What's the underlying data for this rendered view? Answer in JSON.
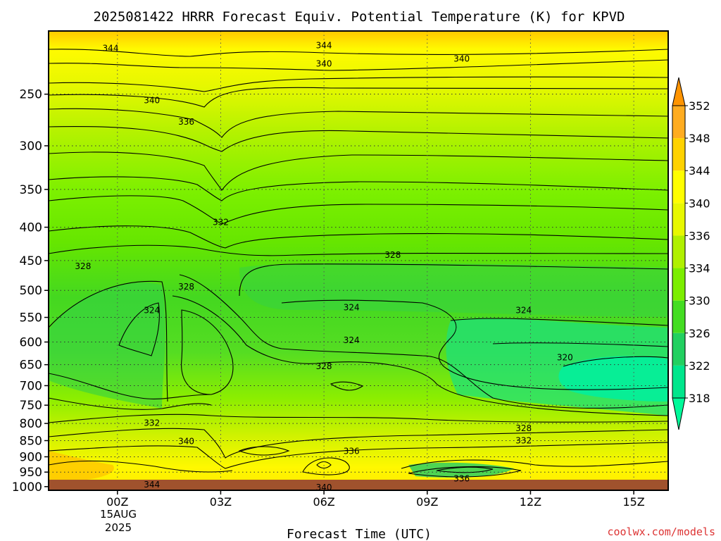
{
  "chart_data": {
    "type": "heatmap",
    "title": "2025081422 HRRR Forecast Equiv. Potential Temperature (K) for KPVD",
    "xlabel": "Forecast Time (UTC)",
    "ylabel": "",
    "credit": "coolwx.com/models",
    "x_ticks": [
      "00Z",
      "03Z",
      "06Z",
      "09Z",
      "12Z",
      "15Z"
    ],
    "x_tick_hours": [
      0,
      3,
      6,
      9,
      12,
      15
    ],
    "x_range_hours": [
      -2,
      16
    ],
    "x_date_label": [
      "15AUG",
      "2025"
    ],
    "y_ticks": [
      250,
      300,
      350,
      400,
      450,
      500,
      550,
      600,
      650,
      700,
      750,
      800,
      850,
      900,
      950,
      1000
    ],
    "y_range_hpa": [
      200,
      1013
    ],
    "y_scale": "log-pressure (reversed)",
    "grid": true,
    "colorbar": {
      "units": "K",
      "levels": [
        318,
        322,
        326,
        330,
        334,
        336,
        340,
        344,
        348,
        352
      ],
      "colors": [
        "#00fa9a",
        "#00e68c",
        "#22d060",
        "#44dd22",
        "#7cee00",
        "#b0f000",
        "#e8f800",
        "#fffe00",
        "#ffd200",
        "#ffac20",
        "#ff9400"
      ],
      "extend": "both"
    },
    "contour_labels": [
      {
        "text": "344",
        "hour": -0.2,
        "hpa": 212
      },
      {
        "text": "344",
        "hour": 6.0,
        "hpa": 210
      },
      {
        "text": "340",
        "hour": 6.0,
        "hpa": 224
      },
      {
        "text": "340",
        "hour": 10.0,
        "hpa": 220
      },
      {
        "text": "340",
        "hour": 1.0,
        "hpa": 255
      },
      {
        "text": "336",
        "hour": 2.0,
        "hpa": 275
      },
      {
        "text": "332",
        "hour": 3.0,
        "hpa": 392
      },
      {
        "text": "328",
        "hour": -1.0,
        "hpa": 458
      },
      {
        "text": "328",
        "hour": 8.0,
        "hpa": 440
      },
      {
        "text": "328",
        "hour": 2.0,
        "hpa": 492
      },
      {
        "text": "324",
        "hour": 1.0,
        "hpa": 535
      },
      {
        "text": "324",
        "hour": 6.8,
        "hpa": 530
      },
      {
        "text": "324",
        "hour": 11.8,
        "hpa": 535
      },
      {
        "text": "324",
        "hour": 6.8,
        "hpa": 595
      },
      {
        "text": "328",
        "hour": 6.0,
        "hpa": 652
      },
      {
        "text": "320",
        "hour": 13.0,
        "hpa": 632
      },
      {
        "text": "332",
        "hour": 1.0,
        "hpa": 797
      },
      {
        "text": "328",
        "hour": 11.8,
        "hpa": 812
      },
      {
        "text": "332",
        "hour": 11.8,
        "hpa": 848
      },
      {
        "text": "340",
        "hour": 2.0,
        "hpa": 850
      },
      {
        "text": "336",
        "hour": 6.8,
        "hpa": 880
      },
      {
        "text": "336",
        "hour": 10.0,
        "hpa": 970
      },
      {
        "text": "344",
        "hour": 1.0,
        "hpa": 990
      },
      {
        "text": "340",
        "hour": 6.0,
        "hpa": 1000
      }
    ]
  }
}
